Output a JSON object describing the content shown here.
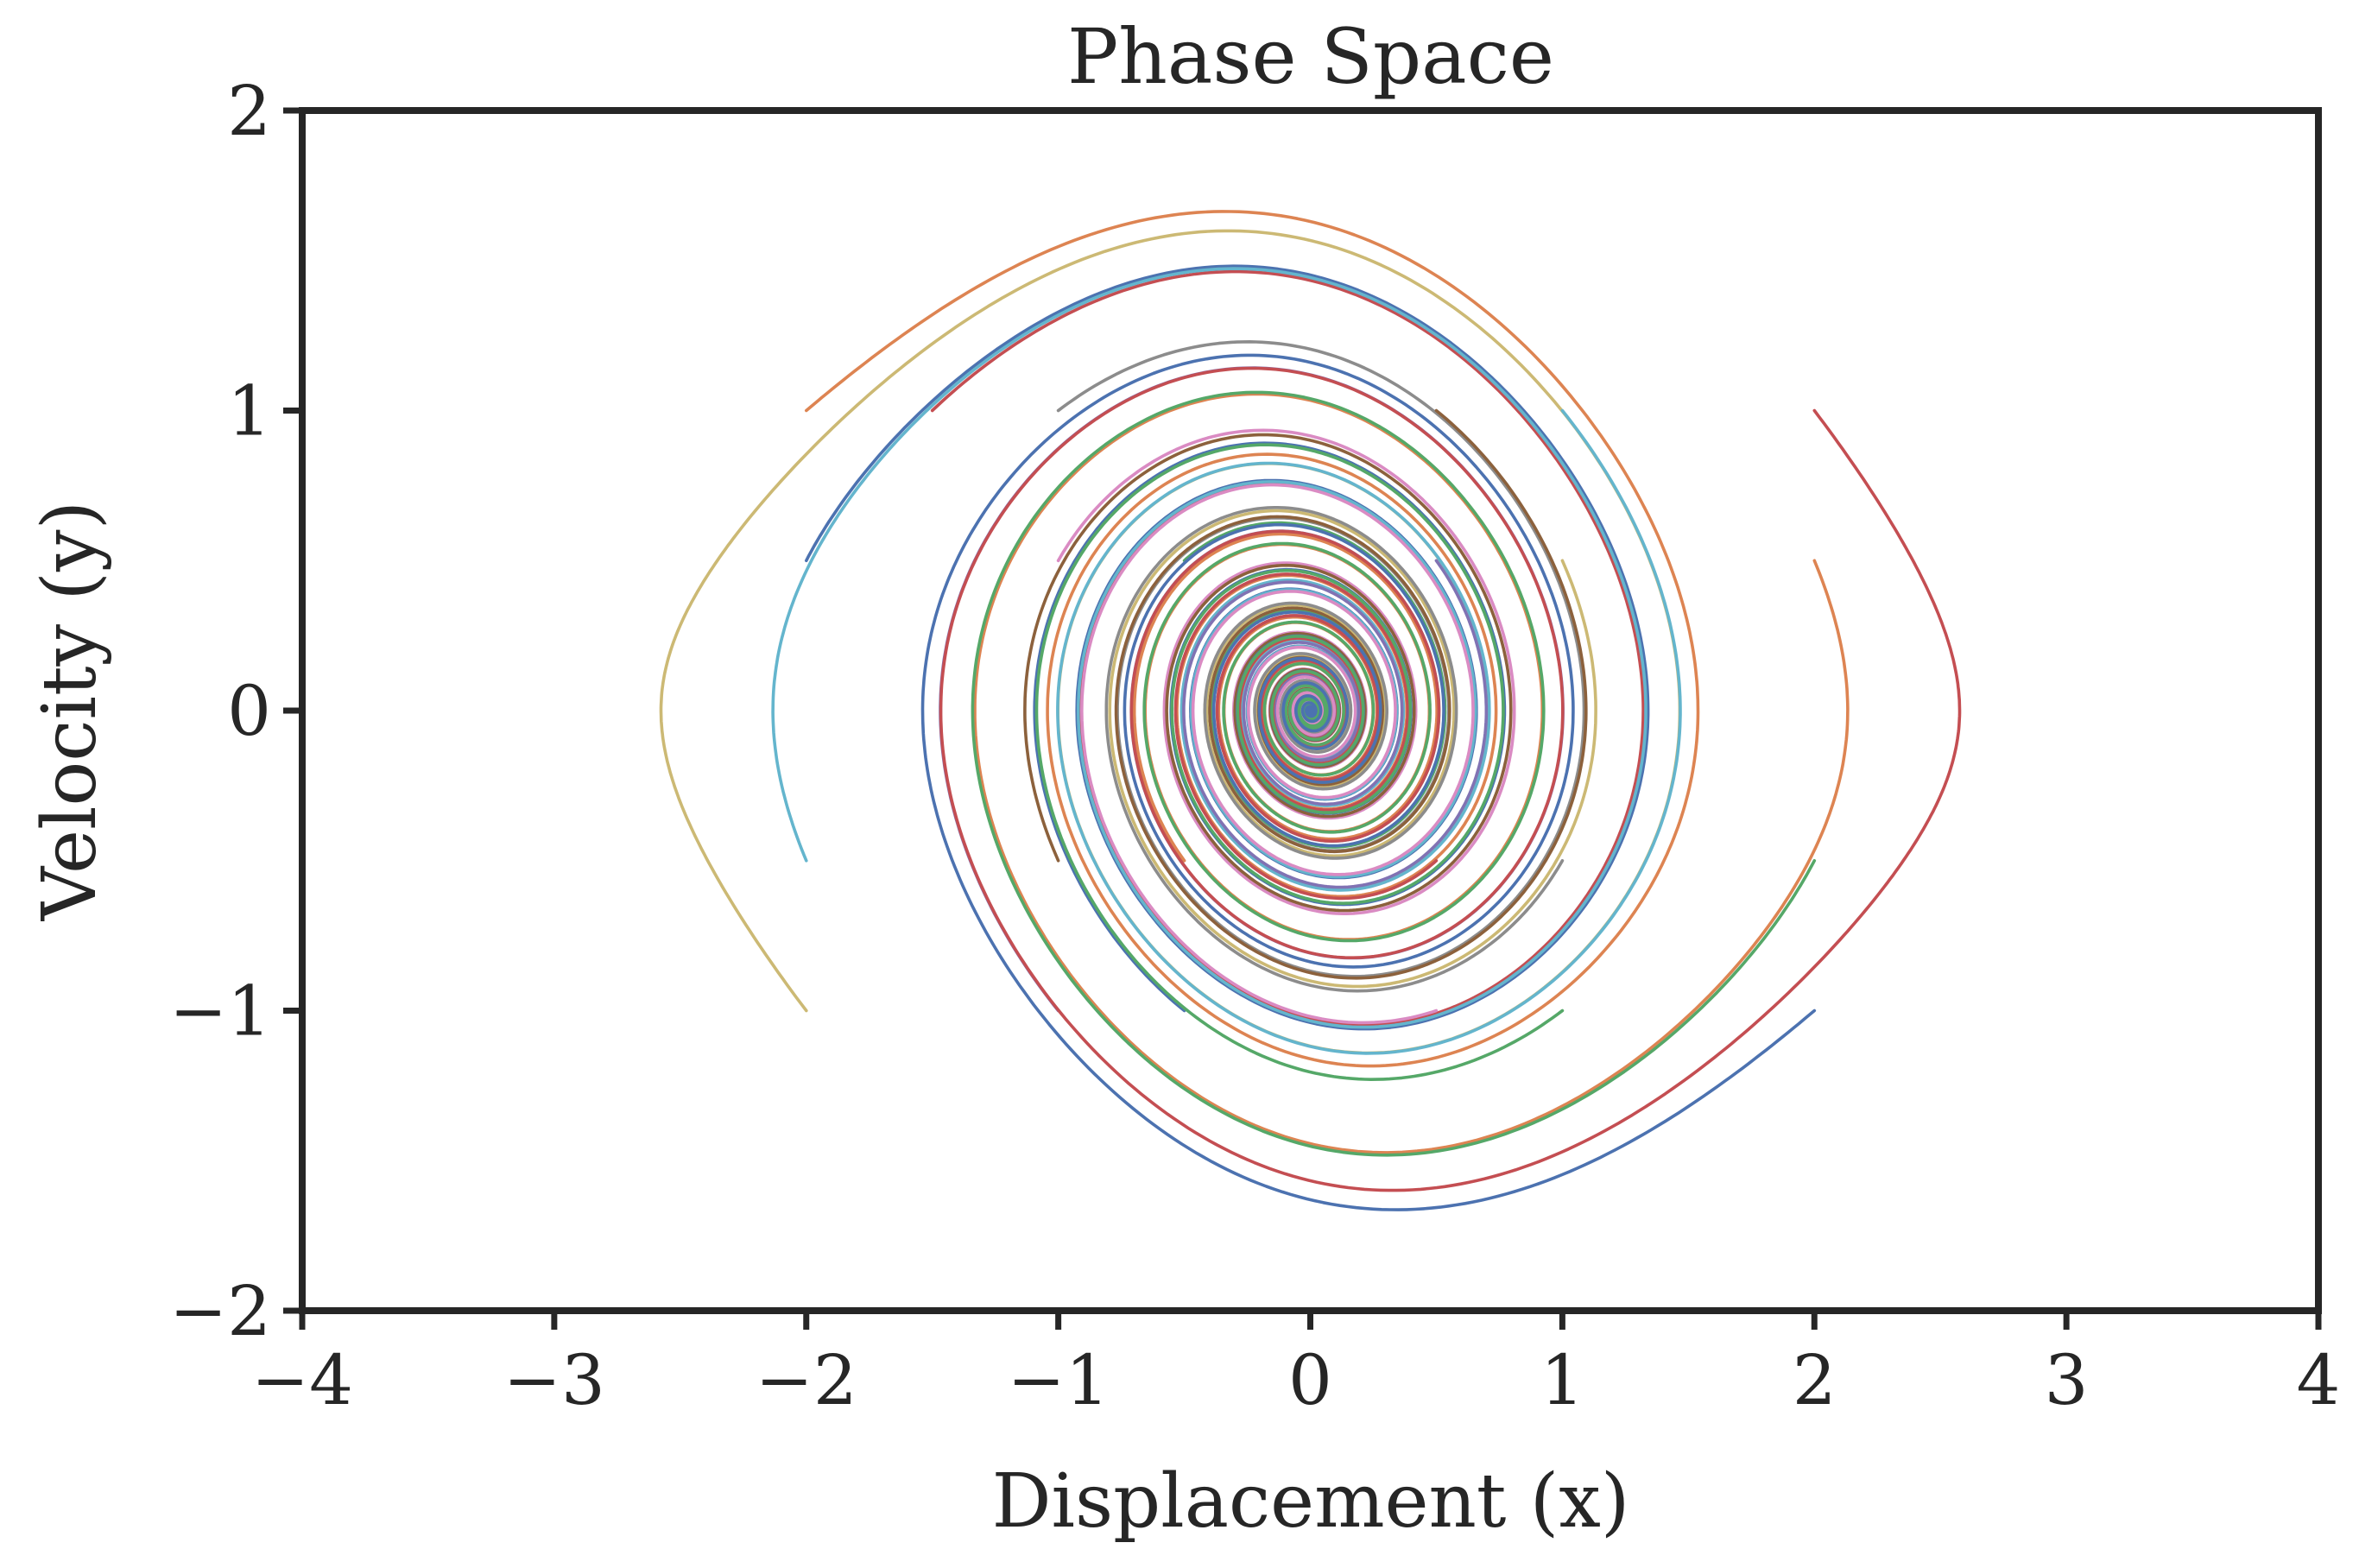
{
  "chart_data": {
    "type": "line",
    "title": "Phase Space",
    "xlabel": "Displacement (x)",
    "ylabel": "Velocity (y)",
    "xlim": [
      -4,
      4
    ],
    "ylim": [
      -2,
      2
    ],
    "xticks": [
      "−4",
      "−3",
      "−2",
      "−1",
      "0",
      "1",
      "2",
      "3",
      "4"
    ],
    "yticks": [
      "−2",
      "−1",
      "0",
      "1",
      "2"
    ],
    "grid": false,
    "legend": "none",
    "damping": 0.2,
    "t_max": 60,
    "initial_conditions": [
      [
        -2.0,
        0.5
      ],
      [
        -2.0,
        1.0
      ],
      [
        -1.5,
        1.0
      ],
      [
        -1.0,
        1.0
      ],
      [
        -1.0,
        0.5
      ],
      [
        -0.5,
        0.5
      ],
      [
        -2.0,
        -0.5
      ],
      [
        -2.0,
        -1.0
      ],
      [
        -1.0,
        -0.5
      ],
      [
        -1.0,
        -1.0
      ],
      [
        -0.5,
        -0.5
      ],
      [
        -0.5,
        -1.0
      ],
      [
        0.5,
        1.0
      ],
      [
        1.0,
        1.0
      ],
      [
        0.5,
        0.5
      ],
      [
        1.0,
        0.5
      ],
      [
        2.0,
        1.0
      ],
      [
        2.0,
        0.5
      ],
      [
        0.5,
        -0.5
      ],
      [
        1.0,
        -0.5
      ],
      [
        0.5,
        -1.0
      ],
      [
        1.0,
        -1.0
      ],
      [
        2.0,
        -0.5
      ],
      [
        2.0,
        -1.0
      ]
    ],
    "colors": [
      "#4c72b0",
      "#dd8452",
      "#c44e52",
      "#8c8c8c",
      "#da8bc3",
      "#55a868",
      "#64b5cd",
      "#ccb974",
      "#8c613c",
      "#8172b3",
      "#dd8452",
      "#4c72b0",
      "#8c613c",
      "#64b5cd",
      "#8172b3",
      "#ccb974",
      "#c44e52",
      "#dd8452",
      "#c44e52",
      "#8c8c8c",
      "#da8bc3",
      "#55a868",
      "#55a868",
      "#4c72b0"
    ]
  }
}
